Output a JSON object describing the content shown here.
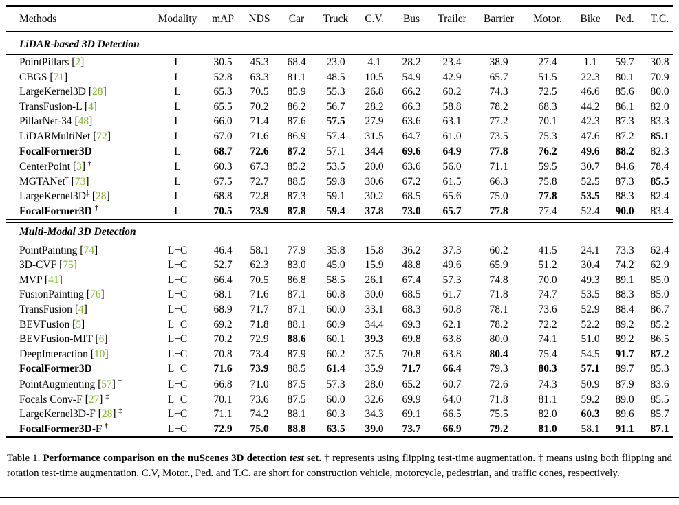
{
  "colors": {
    "citation": "#84b829",
    "text": "#000000",
    "background": "#ffffff"
  },
  "table": {
    "columns": [
      "Methods",
      "Modality",
      "mAP",
      "NDS",
      "Car",
      "Truck",
      "C.V.",
      "Bus",
      "Trailer",
      "Barrier",
      "Motor.",
      "Bike",
      "Ped.",
      "T.C."
    ],
    "sections": [
      {
        "title": "LiDAR-based 3D Detection",
        "groups": [
          {
            "rows": [
              {
                "name": "PointPillars",
                "cite": "2",
                "modality": "L",
                "values": [
                  "30.5",
                  "45.3",
                  "68.4",
                  "23.0",
                  "4.1",
                  "28.2",
                  "23.4",
                  "38.9",
                  "27.4",
                  "1.1",
                  "59.7",
                  "30.8"
                ],
                "bold": []
              },
              {
                "name": "CBGS",
                "cite": "71",
                "modality": "L",
                "values": [
                  "52.8",
                  "63.3",
                  "81.1",
                  "48.5",
                  "10.5",
                  "54.9",
                  "42.9",
                  "65.7",
                  "51.5",
                  "22.3",
                  "80.1",
                  "70.9"
                ],
                "bold": []
              },
              {
                "name": "LargeKernel3D",
                "cite": "28",
                "modality": "L",
                "values": [
                  "65.3",
                  "70.5",
                  "85.9",
                  "55.3",
                  "26.8",
                  "66.2",
                  "60.2",
                  "74.3",
                  "72.5",
                  "46.6",
                  "85.6",
                  "80.0"
                ],
                "bold": []
              },
              {
                "name": "TransFusion-L",
                "cite": "4",
                "modality": "L",
                "values": [
                  "65.5",
                  "70.2",
                  "86.2",
                  "56.7",
                  "28.2",
                  "66.3",
                  "58.8",
                  "78.2",
                  "68.3",
                  "44.2",
                  "86.1",
                  "82.0"
                ],
                "bold": []
              },
              {
                "name": "PillarNet-34",
                "cite": "48",
                "modality": "L",
                "values": [
                  "66.0",
                  "71.4",
                  "87.6",
                  "57.5",
                  "27.9",
                  "63.6",
                  "63.1",
                  "77.2",
                  "70.1",
                  "42.3",
                  "87.3",
                  "83.3"
                ],
                "bold": [
                  3
                ]
              },
              {
                "name": "LiDARMultiNet",
                "cite": "72",
                "modality": "L",
                "values": [
                  "67.0",
                  "71.6",
                  "86.9",
                  "57.4",
                  "31.5",
                  "64.7",
                  "61.0",
                  "73.5",
                  "75.3",
                  "47.6",
                  "87.2",
                  "85.1"
                ],
                "bold": [
                  11
                ]
              },
              {
                "name": "FocalFormer3D",
                "bold_name": true,
                "modality": "L",
                "values": [
                  "68.7",
                  "72.6",
                  "87.2",
                  "57.1",
                  "34.4",
                  "69.6",
                  "64.9",
                  "77.8",
                  "76.2",
                  "49.6",
                  "88.2",
                  "82.3"
                ],
                "bold": [
                  0,
                  1,
                  2,
                  4,
                  5,
                  6,
                  7,
                  8,
                  9,
                  10
                ]
              }
            ]
          },
          {
            "rows": [
              {
                "name": "CenterPoint",
                "cite": "3",
                "sup": "†",
                "modality": "L",
                "values": [
                  "60.3",
                  "67.3",
                  "85.2",
                  "53.5",
                  "20.0",
                  "63.6",
                  "56.0",
                  "71.1",
                  "59.5",
                  "30.7",
                  "84.6",
                  "78.4"
                ],
                "bold": []
              },
              {
                "name": "MGTANet",
                "name_sup": "†",
                "cite": "73",
                "modality": "L",
                "values": [
                  "67.5",
                  "72.7",
                  "88.5",
                  "59.8",
                  "30.6",
                  "67.2",
                  "61.5",
                  "66.3",
                  "75.8",
                  "52.5",
                  "87.3",
                  "85.5"
                ],
                "bold": [
                  11
                ]
              },
              {
                "name": "LargeKernel3D",
                "name_sup": "‡",
                "cite": "28",
                "modality": "L",
                "values": [
                  "68.8",
                  "72.8",
                  "87.3",
                  "59.1",
                  "30.2",
                  "68.5",
                  "65.6",
                  "75.0",
                  "77.8",
                  "53.5",
                  "88.3",
                  "82.4"
                ],
                "bold": [
                  8,
                  9
                ]
              },
              {
                "name": "FocalFormer3D",
                "bold_name": true,
                "sup": "†",
                "modality": "L",
                "values": [
                  "70.5",
                  "73.9",
                  "87.8",
                  "59.4",
                  "37.8",
                  "73.0",
                  "65.7",
                  "77.8",
                  "77.4",
                  "52.4",
                  "90.0",
                  "83.4"
                ],
                "bold": [
                  0,
                  1,
                  2,
                  3,
                  4,
                  5,
                  6,
                  7,
                  10
                ]
              }
            ]
          }
        ]
      },
      {
        "title": "Multi-Modal 3D Detection",
        "groups": [
          {
            "rows": [
              {
                "name": "PointPainting",
                "cite": "74",
                "modality": "L+C",
                "values": [
                  "46.4",
                  "58.1",
                  "77.9",
                  "35.8",
                  "15.8",
                  "36.2",
                  "37.3",
                  "60.2",
                  "41.5",
                  "24.1",
                  "73.3",
                  "62.4"
                ],
                "bold": []
              },
              {
                "name": "3D-CVF",
                "cite": "75",
                "modality": "L+C",
                "values": [
                  "52.7",
                  "62.3",
                  "83.0",
                  "45.0",
                  "15.9",
                  "48.8",
                  "49.6",
                  "65.9",
                  "51.2",
                  "30.4",
                  "74.2",
                  "62.9"
                ],
                "bold": []
              },
              {
                "name": "MVP",
                "cite": "41",
                "modality": "L+C",
                "values": [
                  "66.4",
                  "70.5",
                  "86.8",
                  "58.5",
                  "26.1",
                  "67.4",
                  "57.3",
                  "74.8",
                  "70.0",
                  "49.3",
                  "89.1",
                  "85.0"
                ],
                "bold": []
              },
              {
                "name": "FusionPainting",
                "cite": "76",
                "modality": "L+C",
                "values": [
                  "68.1",
                  "71.6",
                  "87.1",
                  "60.8",
                  "30.0",
                  "68.5",
                  "61.7",
                  "71.8",
                  "74.7",
                  "53.5",
                  "88.3",
                  "85.0"
                ],
                "bold": []
              },
              {
                "name": "TransFusion",
                "cite": "4",
                "modality": "L+C",
                "values": [
                  "68.9",
                  "71.7",
                  "87.1",
                  "60.0",
                  "33.1",
                  "68.3",
                  "60.8",
                  "78.1",
                  "73.6",
                  "52.9",
                  "88.4",
                  "86.7"
                ],
                "bold": []
              },
              {
                "name": "BEVFusion",
                "cite": "5",
                "modality": "L+C",
                "values": [
                  "69.2",
                  "71.8",
                  "88.1",
                  "60.9",
                  "34.4",
                  "69.3",
                  "62.1",
                  "78.2",
                  "72.2",
                  "52.2",
                  "89.2",
                  "85.2"
                ],
                "bold": []
              },
              {
                "name": "BEVFusion-MIT",
                "cite": "6",
                "modality": "L+C",
                "values": [
                  "70.2",
                  "72.9",
                  "88.6",
                  "60.1",
                  "39.3",
                  "69.8",
                  "63.8",
                  "80.0",
                  "74.1",
                  "51.0",
                  "89.2",
                  "86.5"
                ],
                "bold": [
                  2,
                  4
                ]
              },
              {
                "name": "DeepInteraction",
                "cite": "10",
                "modality": "L+C",
                "values": [
                  "70.8",
                  "73.4",
                  "87.9",
                  "60.2",
                  "37.5",
                  "70.8",
                  "63.8",
                  "80.4",
                  "75.4",
                  "54.5",
                  "91.7",
                  "87.2"
                ],
                "bold": [
                  7,
                  10,
                  11
                ]
              },
              {
                "name": "FocalFormer3D",
                "bold_name": true,
                "modality": "L+C",
                "values": [
                  "71.6",
                  "73.9",
                  "88.5",
                  "61.4",
                  "35.9",
                  "71.7",
                  "66.4",
                  "79.3",
                  "80.3",
                  "57.1",
                  "89.7",
                  "85.3"
                ],
                "bold": [
                  0,
                  1,
                  3,
                  5,
                  6,
                  8,
                  9
                ]
              }
            ]
          },
          {
            "rows": [
              {
                "name": "PointAugmenting",
                "cite": "57",
                "sup": "†",
                "modality": "L+C",
                "values": [
                  "66.8",
                  "71.0",
                  "87.5",
                  "57.3",
                  "28.0",
                  "65.2",
                  "60.7",
                  "72.6",
                  "74.3",
                  "50.9",
                  "87.9",
                  "83.6"
                ],
                "bold": []
              },
              {
                "name": "Focals Conv-F",
                "cite": "27",
                "sup": "‡",
                "modality": "L+C",
                "values": [
                  "70.1",
                  "73.6",
                  "87.5",
                  "60.0",
                  "32.6",
                  "69.9",
                  "64.0",
                  "71.8",
                  "81.1",
                  "59.2",
                  "89.0",
                  "85.5"
                ],
                "bold": []
              },
              {
                "name": "LargeKernel3D-F",
                "cite": "28",
                "sup": "‡",
                "modality": "L+C",
                "values": [
                  "71.1",
                  "74.2",
                  "88.1",
                  "60.3",
                  "34.3",
                  "69.1",
                  "66.5",
                  "75.5",
                  "82.0",
                  "60.3",
                  "89.6",
                  "85.7"
                ],
                "bold": [
                  9
                ]
              },
              {
                "name": "FocalFormer3D-F",
                "bold_name": true,
                "sup": "†",
                "modality": "L+C",
                "values": [
                  "72.9",
                  "75.0",
                  "88.8",
                  "63.5",
                  "39.0",
                  "73.7",
                  "66.9",
                  "79.2",
                  "81.0",
                  "58.1",
                  "91.1",
                  "87.1"
                ],
                "bold": [
                  0,
                  1,
                  2,
                  3,
                  4,
                  5,
                  6,
                  7,
                  8,
                  10,
                  11
                ]
              }
            ]
          }
        ]
      }
    ]
  },
  "caption": {
    "label": "Table 1. ",
    "bold_lead": "Performance comparison on the nuScenes 3D detection ",
    "bold_italic": "test",
    "bold_tail": " set.",
    "body": " † represents using flipping test-time augmentation. ‡ means using both flipping and rotation test-time augmentation. C.V, Motor., Ped. and T.C. are short for construction vehicle, motorcycle, pedestrian, and traffic cones, respectively."
  }
}
